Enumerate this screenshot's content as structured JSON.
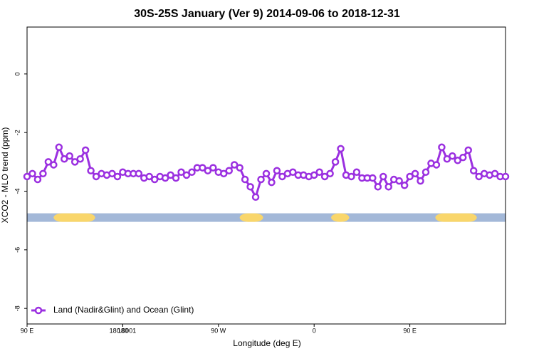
{
  "chart_data": {
    "type": "line",
    "title": "30S-25S January (Ver 9)   2014-09-06 to 2018-12-31",
    "x_label": "Longitude (deg E)",
    "y_label": "XCO2 - MLO trend (ppm)",
    "xlim": [
      90,
      540
    ],
    "xticks": [
      {
        "value": 90,
        "label": "90 E"
      },
      180,
      {
        "value": 270,
        "label": "90 W"
      },
      {
        "value": 360,
        "label": "0"
      },
      {
        "value": 450,
        "label": "90 E"
      },
      180.0001
    ],
    "ylim": [
      -8.53,
      1.6
    ],
    "yticks": [
      0,
      -2,
      -4,
      -6,
      -8
    ],
    "legend": "bottom-left",
    "x": [
      90,
      95,
      100,
      105,
      110,
      115,
      120,
      125,
      130,
      135,
      140,
      145,
      150,
      155,
      160,
      165,
      170,
      175,
      180,
      185,
      190,
      195,
      200,
      205,
      210,
      215,
      220,
      225,
      230,
      235,
      240,
      245,
      250,
      255,
      260,
      265,
      270,
      275,
      280,
      285,
      290,
      295,
      300,
      305,
      310,
      315,
      320,
      325,
      330,
      335,
      340,
      345,
      350,
      355,
      360,
      365,
      370,
      375,
      380,
      385,
      390,
      395,
      400,
      405,
      410,
      415,
      420,
      425,
      430,
      435,
      440,
      445,
      450,
      455,
      460,
      465,
      470,
      475,
      480,
      485,
      490,
      495,
      500,
      505,
      510,
      515,
      520,
      525,
      530,
      535,
      540
    ],
    "series": [
      {
        "name": "Land (Nadir&Glint) and Ocean (Glint)",
        "color": "#9b30e0",
        "values": [
          -3.5,
          -3.4,
          -3.6,
          -3.4,
          -3.0,
          -3.1,
          -2.5,
          -2.9,
          -2.8,
          -3.0,
          -2.9,
          -2.6,
          -3.3,
          -3.5,
          -3.4,
          -3.45,
          -3.4,
          -3.5,
          -3.35,
          -3.4,
          -3.4,
          -3.4,
          -3.55,
          -3.5,
          -3.6,
          -3.5,
          -3.55,
          -3.45,
          -3.55,
          -3.35,
          -3.45,
          -3.35,
          -3.2,
          -3.2,
          -3.3,
          -3.2,
          -3.35,
          -3.4,
          -3.3,
          -3.1,
          -3.2,
          -3.6,
          -3.85,
          -4.2,
          -3.6,
          -3.4,
          -3.7,
          -3.3,
          -3.5,
          -3.4,
          -3.35,
          -3.45,
          -3.45,
          -3.5,
          -3.45,
          -3.35,
          -3.5,
          -3.4,
          -3.0,
          -2.55,
          -3.45,
          -3.5,
          -3.35,
          -3.55,
          -3.55,
          -3.55,
          -3.85,
          -3.5,
          -3.85,
          -3.6,
          -3.65,
          -3.8,
          -3.5,
          -3.4,
          -3.65,
          -3.35,
          -3.05,
          -3.1,
          -2.5,
          -2.9,
          -2.8,
          -2.95,
          -2.85,
          -2.6,
          -3.3,
          -3.5,
          -3.4,
          -3.45,
          -3.4,
          -3.5,
          -3.5
        ]
      }
    ],
    "band": {
      "y": -4.9,
      "color": "#a3b8d8",
      "land_color": "#f9d66b",
      "land": [
        [
          115,
          154
        ],
        [
          290,
          312
        ],
        [
          376,
          393
        ],
        [
          474,
          513
        ]
      ]
    }
  }
}
